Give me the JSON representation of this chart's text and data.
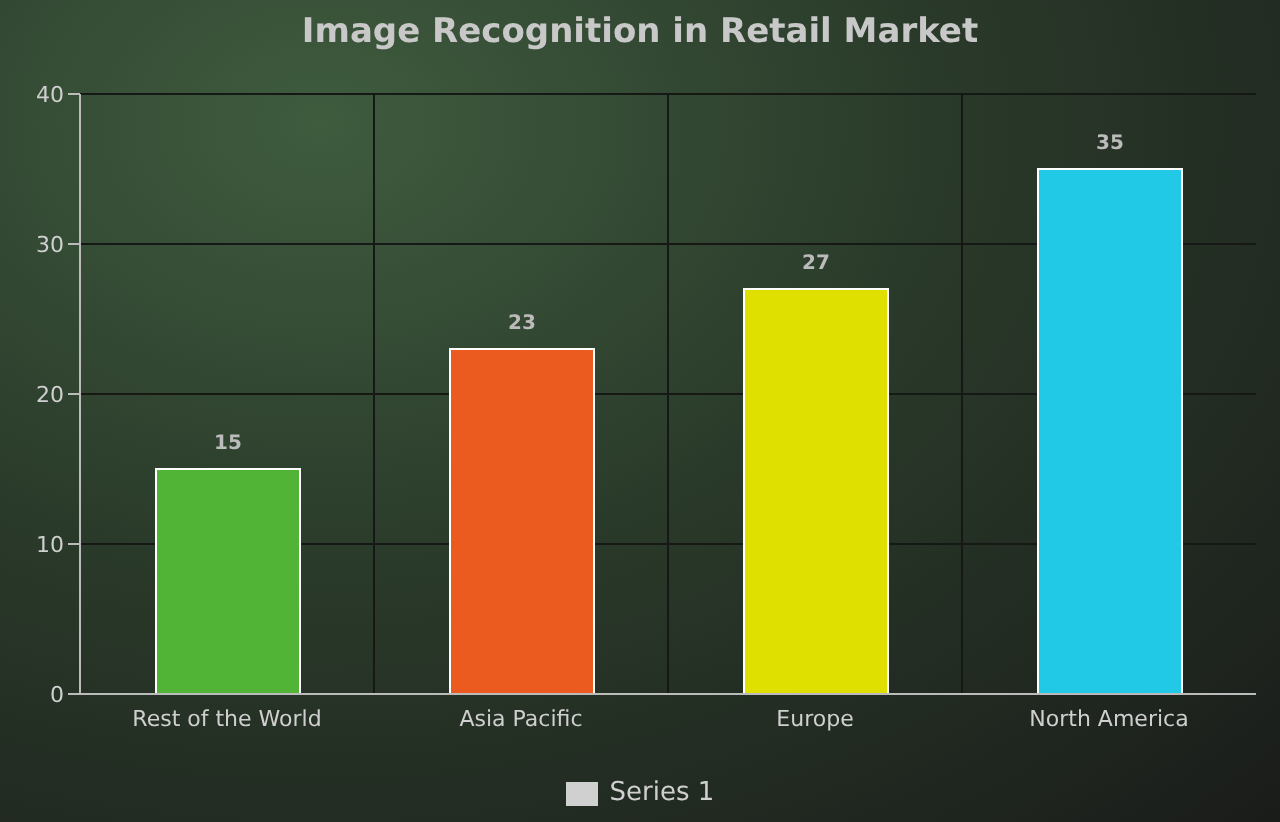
{
  "chart_data": {
    "type": "bar",
    "title": "Image Recognition in Retail Market",
    "categories": [
      "Rest of the World",
      "Asia Pacific",
      "Europe",
      "North America"
    ],
    "series": [
      {
        "name": "Series 1",
        "color": "#d0d0d0",
        "colors": [
          "#52b436",
          "#eb5a1e",
          "#dfe000",
          "#22c9e6"
        ],
        "values": [
          15,
          23,
          27,
          35
        ]
      }
    ],
    "ylim": [
      0,
      40
    ],
    "yticks": [
      0,
      10,
      20,
      30,
      40
    ],
    "grid": true,
    "data_labels": true,
    "legend": "bottom"
  }
}
